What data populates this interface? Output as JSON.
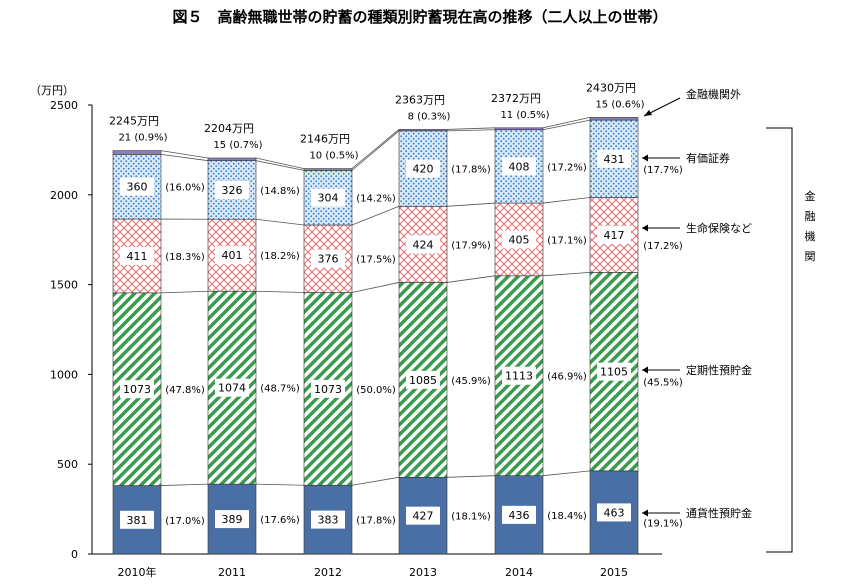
{
  "chart_data": {
    "type": "bar",
    "stacked": true,
    "title": "図５　高齢無職世帯の貯蓄の種類別貯蓄現在高の推移（二人以上の世帯）",
    "ylabel": "（万円）",
    "ylim": [
      0,
      2500
    ],
    "yticks": [
      "0",
      "500",
      "1000",
      "1500",
      "2000",
      "2500"
    ],
    "categories": [
      "2010年",
      "2011",
      "2012",
      "2013",
      "2014",
      "2015"
    ],
    "totals": [
      "2245万円",
      "2204万円",
      "2146万円",
      "2363万円",
      "2372万円",
      "2430万円"
    ],
    "series": [
      {
        "name": "通貨性預貯金",
        "values": [
          381,
          389,
          383,
          427,
          436,
          463
        ],
        "labels": [
          "381",
          "389",
          "383",
          "427",
          "436",
          "463"
        ],
        "shares": [
          "(17.0%)",
          "(17.6%)",
          "(17.8%)",
          "(18.1%)",
          "(18.4%)",
          "(19.1%)"
        ],
        "color": "#4a6fa5"
      },
      {
        "name": "定期性預貯金",
        "values": [
          1073,
          1074,
          1073,
          1085,
          1113,
          1105
        ],
        "labels": [
          "1073",
          "1074",
          "1073",
          "1085",
          "1113",
          "1105"
        ],
        "shares": [
          "(47.8%)",
          "(48.7%)",
          "(50.0%)",
          "(45.9%)",
          "(46.9%)",
          "(45.5%)"
        ],
        "color": "#3a9a4e"
      },
      {
        "name": "生命保険など",
        "values": [
          411,
          401,
          376,
          424,
          405,
          417
        ],
        "labels": [
          "411",
          "401",
          "376",
          "424",
          "405",
          "417"
        ],
        "shares": [
          "(18.3%)",
          "(18.2%)",
          "(17.5%)",
          "(17.9%)",
          "(17.1%)",
          "(17.2%)"
        ],
        "color": "#e57373"
      },
      {
        "name": "有価証券",
        "values": [
          360,
          326,
          304,
          420,
          408,
          431
        ],
        "labels": [
          "360",
          "326",
          "304",
          "420",
          "408",
          "431"
        ],
        "shares": [
          "(16.0%)",
          "(14.8%)",
          "(14.2%)",
          "(17.8%)",
          "(17.2%)",
          "(17.7%)"
        ],
        "color": "#5b9bd5"
      },
      {
        "name": "金融機関外",
        "values": [
          21,
          15,
          10,
          8,
          11,
          15
        ],
        "labels": [
          "21",
          "15",
          "10",
          "8",
          "11",
          "15"
        ],
        "shares": [
          "(0.9%)",
          "(0.7%)",
          "(0.5%)",
          "(0.3%)",
          "(0.5%)",
          "(0.6%)"
        ],
        "color": "#8e7cc3"
      }
    ],
    "bracket_label": [
      "金",
      "融",
      "機",
      "関"
    ],
    "grid": false,
    "legend": "right"
  }
}
